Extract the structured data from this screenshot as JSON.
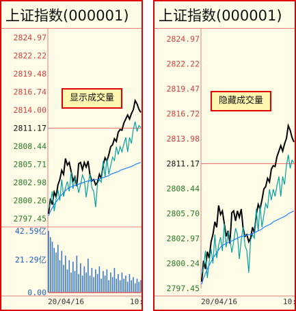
{
  "panels": [
    {
      "id": "left",
      "title": "上证指数(000001)",
      "badge": "显示成交量",
      "price_ticks": [
        {
          "v": "2824.97",
          "c": "#d04040"
        },
        {
          "v": "2822.22",
          "c": "#d04040"
        },
        {
          "v": "2819.48",
          "c": "#d04040"
        },
        {
          "v": "2816.74",
          "c": "#d04040"
        },
        {
          "v": "2814.00",
          "c": "#d04040"
        },
        {
          "v": "2811.17",
          "c": "#111111"
        },
        {
          "v": "2808.44",
          "c": "#2a7a2a"
        },
        {
          "v": "2805.71",
          "c": "#2a7a2a"
        },
        {
          "v": "2802.98",
          "c": "#2a7a2a"
        },
        {
          "v": "2800.26",
          "c": "#2a7a2a"
        },
        {
          "v": "2797.45",
          "c": "#2a7a2a"
        }
      ],
      "volume_ticks": [
        {
          "v": "42.59亿",
          "c": "#2060c0"
        },
        {
          "v": "21.29亿",
          "c": "#2060c0"
        },
        {
          "v": "0.00",
          "c": "#2060c0"
        }
      ],
      "date": "20/04/16",
      "time": "10:"
    },
    {
      "id": "right",
      "title": "上证指数(000001)",
      "badge": "隐藏成交量",
      "price_ticks": [
        {
          "v": "2824.97",
          "c": "#d04040"
        },
        {
          "v": "2822.22",
          "c": "#d04040"
        },
        {
          "v": "2819.47",
          "c": "#d04040"
        },
        {
          "v": "2816.72",
          "c": "#d04040"
        },
        {
          "v": "2813.98",
          "c": "#d04040"
        },
        {
          "v": "2811.17",
          "c": "#111111"
        },
        {
          "v": "2808.44",
          "c": "#2a7a2a"
        },
        {
          "v": "2805.70",
          "c": "#2a7a2a"
        },
        {
          "v": "2802.97",
          "c": "#2a7a2a"
        },
        {
          "v": "2800.24",
          "c": "#2a7a2a"
        },
        {
          "v": "2797.45",
          "c": "#2a7a2a"
        }
      ],
      "volume_ticks": [],
      "date": "20/04/16",
      "time": "10:"
    }
  ],
  "chart_data": {
    "type": "line",
    "ylim": [
      2797.45,
      2824.97
    ],
    "baseline": 2811.17,
    "series": [
      {
        "color": "#000000",
        "values": [
          2798.2,
          2800.5,
          2799.6,
          2801.5,
          2800.8,
          2802.6,
          2803.4,
          2804.8,
          2804.2,
          2806.6,
          2805.6,
          2806.0,
          2804.6,
          2803.2,
          2803.8,
          2802.4,
          2805.8,
          2806.0,
          2804.9,
          2806.0,
          2805.3,
          2806.2,
          2804.1,
          2803.2,
          2803.4,
          2802.6,
          2803.0,
          2804.2,
          2803.6,
          2805.6,
          2806.7,
          2806.2,
          2807.2,
          2808.4,
          2808.7,
          2809.6,
          2809.2,
          2810.6,
          2811.0,
          2810.9,
          2812.0,
          2812.6,
          2813.2,
          2812.6,
          2813.4,
          2814.0,
          2815.4,
          2814.9,
          2814.1,
          2813.6
        ]
      },
      {
        "color": "#00a0a0",
        "values": [
          2799.0,
          2799.8,
          2801.6,
          2798.6,
          2800.4,
          2801.8,
          2800.2,
          2803.4,
          2800.8,
          2802.2,
          2803.1,
          2801.6,
          2804.6,
          2802.0,
          2803.7,
          2803.0,
          2801.4,
          2802.6,
          2804.1,
          2803.4,
          2800.7,
          2802.8,
          2804.2,
          2802.2,
          2801.6,
          2799.2,
          2802.8,
          2803.4,
          2803.0,
          2806.2,
          2803.8,
          2806.6,
          2804.2,
          2805.5,
          2806.8,
          2806.3,
          2808.4,
          2807.2,
          2808.4,
          2807.6,
          2808.8,
          2809.8,
          2807.6,
          2809.8,
          2808.9,
          2811.0,
          2812.2,
          2810.7,
          2811.6,
          2811.3
        ]
      },
      {
        "color": "#2080ff",
        "values": [
          2797.9,
          2798.6,
          2799.1,
          2799.6,
          2800.0,
          2800.4,
          2800.8,
          2801.1,
          2801.4,
          2801.7,
          2802.0,
          2802.2,
          2802.3,
          2802.4,
          2802.5,
          2802.6,
          2802.7,
          2802.8,
          2802.9,
          2803.0,
          2803.1,
          2803.2,
          2803.2,
          2803.3,
          2803.3,
          2803.4,
          2803.4,
          2803.5,
          2803.6,
          2803.7,
          2803.8,
          2803.9,
          2804.0,
          2804.2,
          2804.3,
          2804.4,
          2804.5,
          2804.6,
          2804.8,
          2804.9,
          2805.0,
          2805.1,
          2805.2,
          2805.3,
          2805.4,
          2805.5,
          2805.7,
          2805.8,
          2805.9,
          2806.0
        ]
      }
    ],
    "volume": [
      40,
      36,
      33,
      29,
      26,
      31,
      21,
      27,
      18,
      24,
      15,
      21,
      13,
      20,
      14,
      24,
      12,
      19,
      11,
      17,
      13,
      22,
      11,
      16,
      10,
      15,
      12,
      17,
      9,
      14,
      11,
      15,
      8,
      13,
      10,
      16,
      9,
      12,
      8,
      13,
      9,
      11,
      7,
      12,
      8,
      10,
      6,
      9,
      7,
      8
    ]
  }
}
